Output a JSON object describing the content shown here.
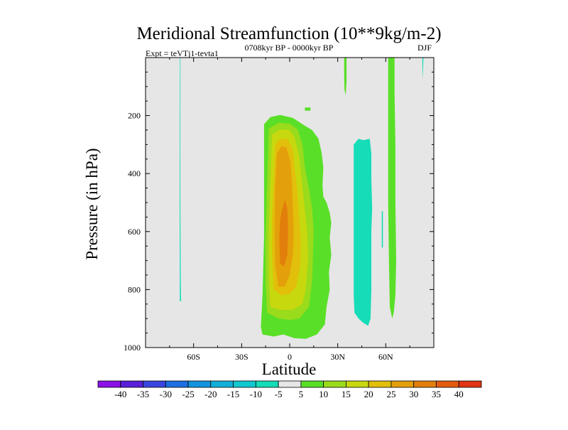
{
  "chart_data": {
    "type": "contour",
    "title": "Meridional Streamfunction (10**9kg/m-2)",
    "subtitle_left": "Expt = teVTj1-tevta1",
    "subtitle_center": "0708kyr BP - 0000kyr BP",
    "subtitle_right": "DJF",
    "xlabel": "Latitude",
    "ylabel": "Pressure (in hPa)",
    "xlim": [
      -90,
      90
    ],
    "ylim": [
      1000,
      0
    ],
    "x_ticks": [
      {
        "value": -60,
        "label": "60S"
      },
      {
        "value": -30,
        "label": "30S"
      },
      {
        "value": 0,
        "label": "0"
      },
      {
        "value": 30,
        "label": "30N"
      },
      {
        "value": 60,
        "label": "60N"
      }
    ],
    "y_ticks": [
      {
        "value": 200,
        "label": "200"
      },
      {
        "value": 400,
        "label": "400"
      },
      {
        "value": 600,
        "label": "600"
      },
      {
        "value": 800,
        "label": "800"
      },
      {
        "value": 1000,
        "label": "1000"
      }
    ],
    "background_color": "#e6e6e6",
    "colorbar": {
      "labels": [
        "-40",
        "-35",
        "-30",
        "-25",
        "-20",
        "-15",
        "-10",
        "-5",
        "5",
        "10",
        "15",
        "20",
        "25",
        "30",
        "35",
        "40"
      ],
      "colors": [
        "#8b12e8",
        "#5a1fd8",
        "#3a46de",
        "#1e6fe0",
        "#1493dc",
        "#13afd8",
        "#12c8cf",
        "#16dcb8",
        "#e6e6e6",
        "#5adf28",
        "#9adb1c",
        "#c8d80e",
        "#e2bf0a",
        "#e4a00a",
        "#e27e0c",
        "#e25c10",
        "#e03414"
      ]
    },
    "contour_regions": [
      {
        "name": "cyan-streak-60s",
        "level": -5,
        "color": "#16dcb8",
        "points": [
          [
            -68.5,
            0
          ],
          [
            -68.2,
            0
          ],
          [
            -68.3,
            420
          ],
          [
            -68.0,
            770
          ],
          [
            -67.8,
            840
          ],
          [
            -68.6,
            840
          ],
          [
            -68.7,
            420
          ]
        ]
      },
      {
        "name": "green-speck-40n",
        "level": 5,
        "color": "#5adf28",
        "points": [
          [
            34,
            0
          ],
          [
            35.5,
            0
          ],
          [
            35.5,
            80
          ],
          [
            35,
            130
          ],
          [
            34.2,
            110
          ],
          [
            34,
            50
          ]
        ]
      },
      {
        "name": "green-dot-10n",
        "level": 5,
        "color": "#5adf28",
        "points": [
          [
            9.5,
            172
          ],
          [
            13,
            172
          ],
          [
            13,
            183
          ],
          [
            9.5,
            183
          ]
        ]
      },
      {
        "name": "green-main-cell",
        "level": 5,
        "color": "#5adf28",
        "points": [
          [
            -16,
            230
          ],
          [
            -12,
            205
          ],
          [
            -6,
            198
          ],
          [
            2,
            208
          ],
          [
            8,
            230
          ],
          [
            14,
            250
          ],
          [
            18,
            280
          ],
          [
            20,
            330
          ],
          [
            21,
            380
          ],
          [
            20.5,
            440
          ],
          [
            21,
            480
          ],
          [
            23,
            500
          ],
          [
            25,
            535
          ],
          [
            26,
            570
          ],
          [
            25,
            620
          ],
          [
            26,
            680
          ],
          [
            24.5,
            740
          ],
          [
            25,
            800
          ],
          [
            23,
            860
          ],
          [
            22,
            920
          ],
          [
            17,
            955
          ],
          [
            10,
            970
          ],
          [
            3,
            968
          ],
          [
            -4,
            955
          ],
          [
            -10,
            962
          ],
          [
            -17,
            955
          ],
          [
            -18,
            930
          ],
          [
            -17,
            820
          ],
          [
            -16,
            620
          ],
          [
            -16,
            420
          ]
        ]
      },
      {
        "name": "yellow-green-cell",
        "level": 10,
        "color": "#9adb1c",
        "points": [
          [
            -13,
            245
          ],
          [
            -7,
            225
          ],
          [
            0,
            228
          ],
          [
            5,
            248
          ],
          [
            8,
            300
          ],
          [
            9.5,
            380
          ],
          [
            12,
            450
          ],
          [
            14,
            520
          ],
          [
            15,
            600
          ],
          [
            14.5,
            680
          ],
          [
            14,
            770
          ],
          [
            12,
            860
          ],
          [
            6,
            900
          ],
          [
            0,
            905
          ],
          [
            -7,
            900
          ],
          [
            -14,
            880
          ],
          [
            -15,
            780
          ],
          [
            -15,
            620
          ],
          [
            -14,
            420
          ]
        ]
      },
      {
        "name": "yellow-cell",
        "level": 15,
        "color": "#c8d80e",
        "points": [
          [
            -11,
            265
          ],
          [
            -6,
            248
          ],
          [
            0,
            250
          ],
          [
            3,
            275
          ],
          [
            6,
            340
          ],
          [
            7.5,
            420
          ],
          [
            9,
            500
          ],
          [
            11,
            600
          ],
          [
            11.5,
            700
          ],
          [
            10,
            800
          ],
          [
            8,
            850
          ],
          [
            2,
            870
          ],
          [
            -6,
            870
          ],
          [
            -12,
            860
          ],
          [
            -13,
            760
          ],
          [
            -13,
            600
          ],
          [
            -12,
            420
          ]
        ]
      },
      {
        "name": "gold-cell",
        "level": 20,
        "color": "#e2bf0a",
        "points": [
          [
            -9,
            300
          ],
          [
            -6,
            280
          ],
          [
            -1,
            282
          ],
          [
            2,
            320
          ],
          [
            3.5,
            400
          ],
          [
            5,
            470
          ],
          [
            6,
            560
          ],
          [
            7,
            640
          ],
          [
            6.5,
            720
          ],
          [
            4,
            790
          ],
          [
            0,
            815
          ],
          [
            -5,
            820
          ],
          [
            -10,
            800
          ],
          [
            -11,
            680
          ],
          [
            -11,
            540
          ],
          [
            -10,
            420
          ]
        ]
      },
      {
        "name": "orange-cell",
        "level": 25,
        "color": "#e4a00a",
        "points": [
          [
            -8,
            330
          ],
          [
            -5,
            305
          ],
          [
            -2,
            310
          ],
          [
            0.5,
            360
          ],
          [
            1.5,
            440
          ],
          [
            2,
            520
          ],
          [
            2.5,
            600
          ],
          [
            2,
            680
          ],
          [
            0,
            750
          ],
          [
            -3,
            790
          ],
          [
            -7,
            790
          ],
          [
            -9,
            720
          ],
          [
            -9.5,
            580
          ],
          [
            -9,
            440
          ]
        ]
      },
      {
        "name": "orange-core",
        "level": 30,
        "color": "#e27e0c",
        "points": [
          [
            -5,
            530
          ],
          [
            -3,
            490
          ],
          [
            -1.5,
            520
          ],
          [
            -1,
            600
          ],
          [
            -1.5,
            680
          ],
          [
            -3.5,
            720
          ],
          [
            -6,
            710
          ],
          [
            -6.5,
            620
          ],
          [
            -6,
            560
          ]
        ]
      },
      {
        "name": "cyan-cell-45n",
        "level": -5,
        "color": "#16dcb8",
        "points": [
          [
            40,
            300
          ],
          [
            43,
            280
          ],
          [
            46,
            285
          ],
          [
            50,
            280
          ],
          [
            51,
            330
          ],
          [
            51,
            420
          ],
          [
            51.5,
            520
          ],
          [
            51,
            600
          ],
          [
            51,
            700
          ],
          [
            51,
            800
          ],
          [
            50.5,
            900
          ],
          [
            49,
            925
          ],
          [
            46,
            915
          ],
          [
            43,
            900
          ],
          [
            40.5,
            880
          ],
          [
            40,
            820
          ],
          [
            40,
            600
          ],
          [
            40,
            450
          ]
        ]
      },
      {
        "name": "cyan-sliver-58n",
        "level": -5,
        "color": "#16dcb8",
        "points": [
          [
            57.5,
            530
          ],
          [
            58.2,
            530
          ],
          [
            58.2,
            655
          ],
          [
            57.5,
            655
          ]
        ]
      },
      {
        "name": "green-column-62n",
        "level": 5,
        "color": "#5adf28",
        "points": [
          [
            61.5,
            0
          ],
          [
            65.5,
            0
          ],
          [
            65.5,
            120
          ],
          [
            66,
            300
          ],
          [
            66,
            500
          ],
          [
            66.5,
            700
          ],
          [
            66,
            820
          ],
          [
            65,
            880
          ],
          [
            64,
            900
          ],
          [
            62.5,
            860
          ],
          [
            62,
            700
          ],
          [
            61.5,
            500
          ],
          [
            61.5,
            250
          ]
        ]
      },
      {
        "name": "cyan-streak-83n",
        "level": -5,
        "color": "#16dcb8",
        "points": [
          [
            82.8,
            0
          ],
          [
            83.5,
            0
          ],
          [
            83.3,
            40
          ],
          [
            83.2,
            75
          ],
          [
            82.9,
            40
          ]
        ]
      }
    ]
  }
}
